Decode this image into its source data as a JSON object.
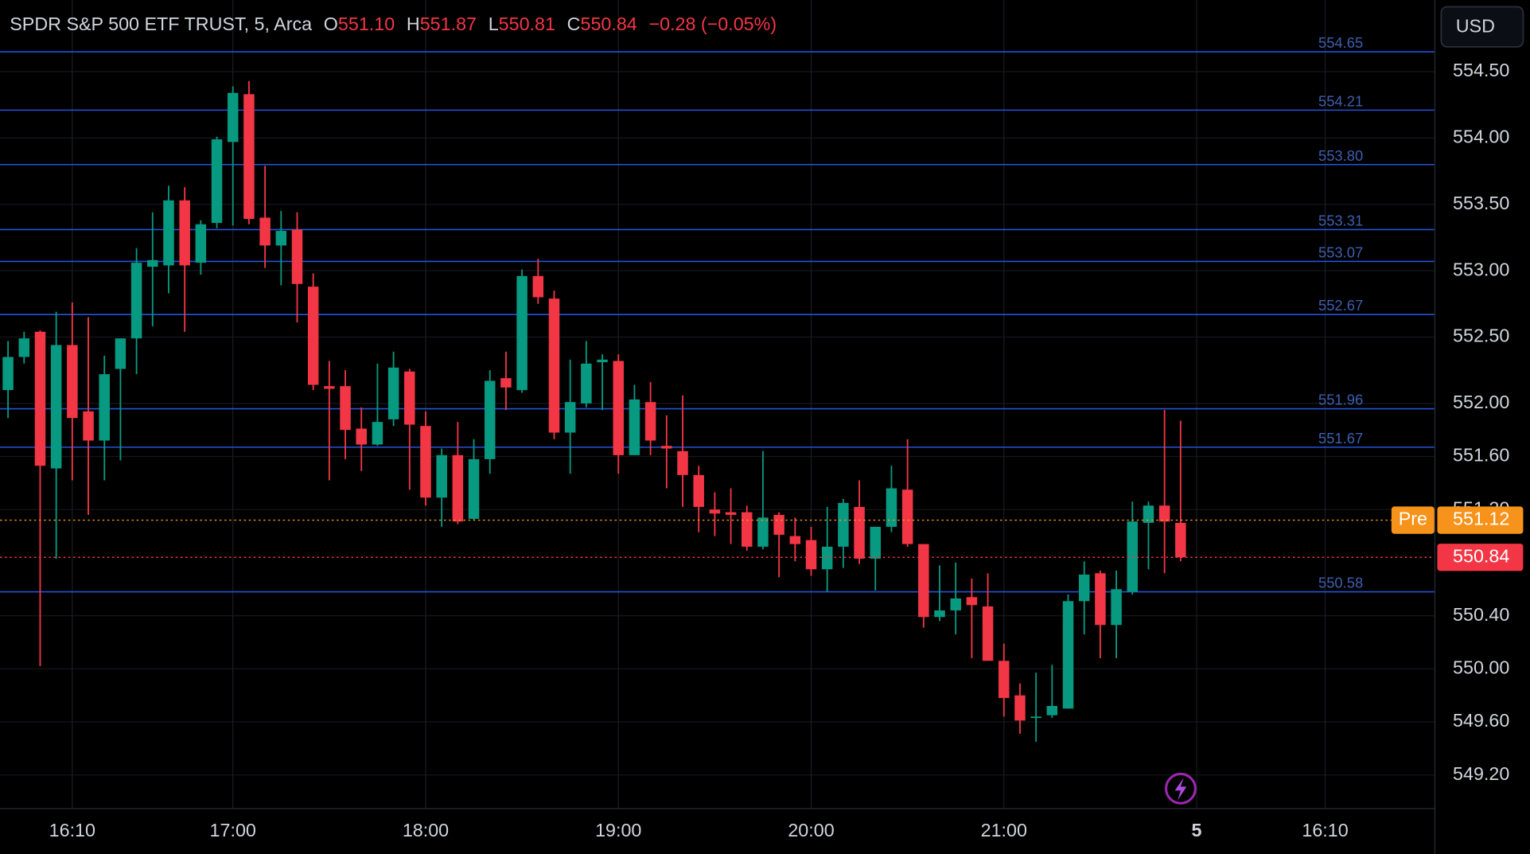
{
  "header": {
    "title": "SPDR S&P 500 ETF TRUST, 5, Arca",
    "ohlc": [
      {
        "key": "O",
        "value": "551.10"
      },
      {
        "key": "H",
        "value": "551.87"
      },
      {
        "key": "L",
        "value": "550.81"
      },
      {
        "key": "C",
        "value": "550.84"
      }
    ],
    "change": "−0.28 (−0.05%)"
  },
  "currency": "USD",
  "chart_data": {
    "type": "candlestick",
    "up_color": "#089981",
    "down_color": "#f23645",
    "grid": true,
    "open": [
      552.1,
      552.35,
      552.54,
      551.51,
      552.44,
      551.94,
      551.72,
      552.26,
      552.49,
      553.03,
      553.04,
      553.53,
      553.06,
      553.36,
      553.97,
      554.33,
      553.4,
      553.19,
      553.31,
      552.88,
      552.13,
      552.13,
      551.81,
      551.69,
      551.88,
      552.24,
      551.83,
      551.29,
      551.61,
      551.13,
      551.58,
      552.19,
      552.1,
      552.96,
      552.79,
      551.78,
      552.0,
      552.31,
      552.32,
      551.61,
      552.01,
      551.68,
      551.64,
      551.46,
      551.2,
      551.18,
      551.18,
      550.92,
      551.16,
      551.0,
      550.97,
      550.75,
      550.92,
      551.22,
      550.83,
      551.07,
      551.35,
      550.94,
      550.39,
      550.44,
      550.54,
      550.47,
      550.06,
      549.8,
      549.63,
      549.65,
      549.7,
      550.51,
      550.72,
      550.33,
      550.58,
      551.1,
      551.23,
      551.1
    ],
    "high": [
      552.47,
      552.54,
      552.55,
      552.69,
      552.76,
      552.65,
      552.36,
      552.49,
      553.17,
      553.44,
      553.64,
      553.63,
      553.38,
      554.01,
      554.39,
      554.43,
      553.79,
      553.45,
      553.44,
      552.98,
      552.32,
      552.25,
      551.97,
      552.3,
      552.39,
      552.26,
      551.94,
      551.66,
      551.86,
      551.73,
      552.25,
      552.39,
      553.01,
      553.09,
      552.85,
      552.33,
      552.47,
      552.37,
      552.37,
      552.14,
      552.16,
      551.91,
      552.06,
      551.53,
      551.33,
      551.36,
      551.23,
      551.64,
      551.18,
      551.14,
      551.07,
      551.22,
      551.28,
      551.42,
      551.07,
      551.53,
      551.73,
      550.94,
      550.78,
      550.8,
      550.68,
      550.72,
      550.19,
      549.89,
      549.97,
      550.03,
      550.56,
      550.81,
      550.74,
      550.74,
      551.26,
      551.26,
      551.95,
      551.87
    ],
    "low": [
      551.89,
      552.3,
      550.02,
      550.83,
      551.42,
      551.16,
      551.42,
      551.57,
      552.22,
      552.58,
      552.83,
      552.54,
      552.97,
      553.32,
      553.34,
      553.35,
      553.02,
      552.89,
      552.61,
      552.1,
      551.42,
      551.58,
      551.49,
      551.68,
      551.83,
      551.35,
      551.23,
      551.07,
      551.09,
      551.12,
      551.47,
      551.95,
      552.08,
      552.75,
      551.73,
      551.47,
      551.97,
      551.95,
      551.47,
      551.61,
      551.61,
      551.36,
      551.22,
      551.03,
      551.0,
      550.94,
      550.89,
      550.9,
      550.69,
      550.81,
      550.7,
      550.58,
      550.76,
      550.79,
      550.59,
      551.03,
      550.92,
      550.31,
      550.36,
      550.26,
      550.08,
      550.06,
      549.64,
      549.51,
      549.45,
      549.63,
      549.7,
      550.26,
      550.08,
      550.08,
      550.56,
      550.75,
      550.72,
      550.81
    ],
    "close": [
      552.35,
      552.49,
      551.53,
      552.44,
      551.89,
      551.72,
      552.22,
      552.49,
      553.06,
      553.08,
      553.53,
      553.04,
      553.35,
      553.99,
      554.34,
      553.39,
      553.19,
      553.3,
      552.9,
      552.14,
      552.11,
      551.8,
      551.69,
      551.86,
      552.27,
      551.84,
      551.29,
      551.61,
      551.11,
      551.58,
      552.17,
      552.12,
      552.96,
      552.8,
      551.78,
      552.01,
      552.3,
      552.33,
      551.61,
      552.03,
      551.72,
      551.66,
      551.46,
      551.22,
      551.17,
      551.16,
      550.92,
      551.14,
      551.01,
      550.94,
      550.75,
      550.92,
      551.25,
      550.83,
      551.07,
      551.36,
      550.94,
      550.39,
      550.44,
      550.53,
      550.48,
      550.06,
      549.78,
      549.61,
      549.64,
      549.72,
      550.51,
      550.71,
      550.33,
      550.6,
      551.11,
      551.23,
      551.11,
      550.84
    ],
    "xlim": [
      -0.5,
      88.8
    ],
    "xticks": [
      {
        "value": 4,
        "label": "16:10"
      },
      {
        "value": 14,
        "label": "17:00"
      },
      {
        "value": 26,
        "label": "18:00"
      },
      {
        "value": 38,
        "label": "19:00"
      },
      {
        "value": 50,
        "label": "20:00"
      },
      {
        "value": 62,
        "label": "21:00"
      },
      {
        "value": 74,
        "label": "5"
      },
      {
        "value": 82,
        "label": "16:10"
      }
    ],
    "ylim": [
      548.95,
      555.04
    ],
    "yticks": [
      {
        "value": 554.5,
        "label": "554.50"
      },
      {
        "value": 554,
        "label": "554.00"
      },
      {
        "value": 553.5,
        "label": "553.50"
      },
      {
        "value": 553,
        "label": "553.00"
      },
      {
        "value": 552.5,
        "label": "552.50"
      },
      {
        "value": 552,
        "label": "552.00"
      },
      {
        "value": 551.6,
        "label": "551.60"
      },
      {
        "value": 551.2,
        "label": "551.20"
      },
      {
        "value": 550.4,
        "label": "550.40"
      },
      {
        "value": 550,
        "label": "550.00"
      },
      {
        "value": 549.6,
        "label": "549.60"
      },
      {
        "value": 549.2,
        "label": "549.20"
      }
    ],
    "levels": {
      "color": "#2962ff",
      "values": [
        554.65,
        554.21,
        553.8,
        553.31,
        553.07,
        552.67,
        551.96,
        551.67,
        550.58
      ],
      "value_labels": [
        "554.65",
        "554.21",
        "553.80",
        "553.31",
        "553.07",
        "552.67",
        "551.96",
        "551.67",
        "550.58"
      ]
    },
    "price_lines": [
      {
        "label": "Pre",
        "value": 551.12,
        "value_label": "551.12",
        "color": "#f7931a"
      },
      {
        "value": 550.84,
        "value_label": "550.84",
        "color": "#f23645"
      }
    ]
  }
}
